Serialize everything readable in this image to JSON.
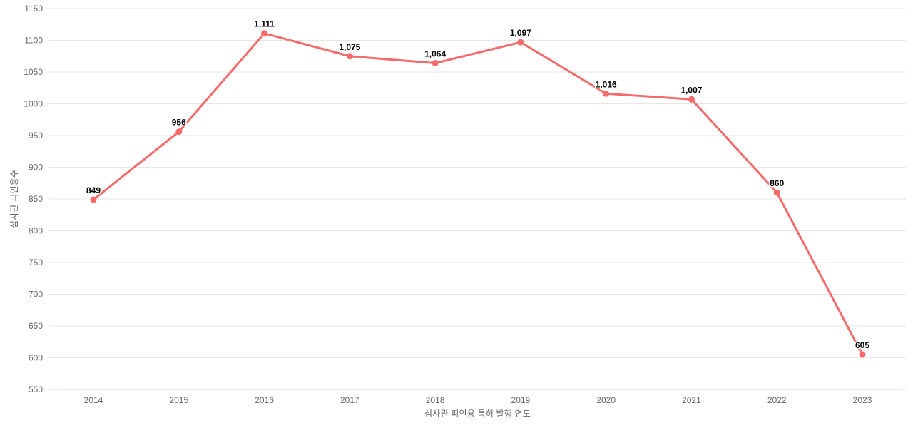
{
  "chart_data": {
    "type": "line",
    "title": "",
    "xlabel": "심사관 피인용 특허 발행 연도",
    "ylabel": "심사관 피인용수",
    "categories": [
      "2014",
      "2015",
      "2016",
      "2017",
      "2018",
      "2019",
      "2020",
      "2021",
      "2022",
      "2023"
    ],
    "values": [
      849,
      956,
      1111,
      1075,
      1064,
      1097,
      1016,
      1007,
      860,
      605
    ],
    "value_labels": [
      "849",
      "956",
      "1,111",
      "1,075",
      "1,064",
      "1,097",
      "1,016",
      "1,007",
      "860",
      "605"
    ],
    "ylim": [
      550,
      1150
    ],
    "ytick_step": 50,
    "grid": "horizontal",
    "legend": "none",
    "colors": {
      "line": "#f56b6b",
      "marker": "#f56b6b",
      "grid": "#e6e6e6",
      "axis_line": "#ccd6eb",
      "tick_label": "#666666",
      "axis_title": "#666666",
      "data_label": "#000000",
      "background": "#ffffff"
    }
  }
}
